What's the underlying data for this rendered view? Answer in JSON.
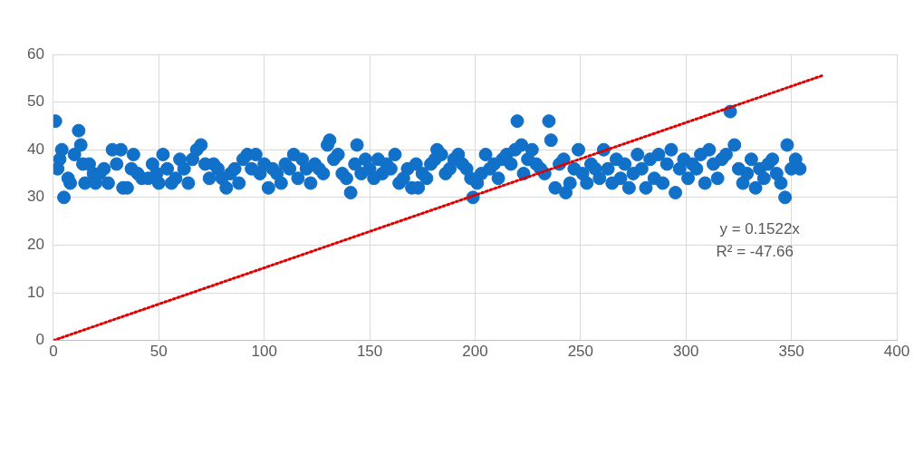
{
  "chart_data": {
    "type": "scatter",
    "xlim": [
      0,
      400
    ],
    "ylim": [
      0,
      60
    ],
    "xticks": [
      0,
      50,
      100,
      150,
      200,
      250,
      300,
      350,
      400
    ],
    "yticks": [
      0,
      10,
      20,
      30,
      40,
      50,
      60
    ],
    "grid": true,
    "legend": false,
    "marker": "circle",
    "annotations": [
      "y = 0.1522x",
      "R² = -47.66"
    ],
    "series": [
      {
        "color": "#1170c8",
        "x": [
          1,
          2,
          3,
          4,
          5,
          7,
          8,
          10,
          12,
          13,
          14,
          15,
          17,
          19,
          20,
          22,
          24,
          26,
          28,
          30,
          32,
          33,
          35,
          37,
          38,
          40,
          42,
          45,
          47,
          49,
          50,
          52,
          54,
          56,
          58,
          60,
          62,
          64,
          66,
          68,
          70,
          72,
          74,
          76,
          78,
          80,
          82,
          84,
          86,
          88,
          90,
          92,
          94,
          96,
          98,
          100,
          102,
          104,
          106,
          108,
          110,
          112,
          114,
          116,
          118,
          120,
          122,
          124,
          126,
          128,
          130,
          131,
          133,
          135,
          137,
          139,
          141,
          143,
          144,
          146,
          148,
          150,
          152,
          154,
          156,
          158,
          160,
          162,
          164,
          166,
          168,
          170,
          172,
          173,
          175,
          177,
          179,
          181,
          182,
          184,
          186,
          188,
          190,
          192,
          194,
          196,
          198,
          199,
          201,
          203,
          205,
          207,
          209,
          211,
          213,
          215,
          217,
          219,
          220,
          222,
          223,
          225,
          227,
          229,
          231,
          233,
          235,
          236,
          238,
          240,
          242,
          243,
          245,
          247,
          249,
          251,
          253,
          255,
          257,
          259,
          261,
          263,
          265,
          267,
          269,
          271,
          273,
          275,
          277,
          279,
          281,
          283,
          285,
          287,
          289,
          291,
          293,
          295,
          297,
          299,
          301,
          303,
          305,
          307,
          309,
          311,
          313,
          315,
          317,
          319,
          321,
          323,
          325,
          327,
          329,
          331,
          333,
          335,
          337,
          339,
          341,
          343,
          345,
          347,
          348,
          350,
          352,
          354
        ],
        "values": [
          46,
          36,
          38,
          40,
          30,
          34,
          33,
          39,
          44,
          41,
          37,
          33,
          37,
          35,
          33,
          35,
          36,
          33,
          40,
          37,
          40,
          32,
          32,
          36,
          39,
          35,
          34,
          34,
          37,
          35,
          33,
          39,
          36,
          33,
          34,
          38,
          36,
          33,
          38,
          40,
          41,
          37,
          34,
          37,
          36,
          34,
          32,
          35,
          36,
          33,
          38,
          39,
          36,
          39,
          35,
          37,
          32,
          36,
          35,
          33,
          37,
          36,
          39,
          34,
          38,
          36,
          33,
          37,
          36,
          35,
          41,
          42,
          38,
          39,
          35,
          34,
          31,
          37,
          41,
          35,
          38,
          36,
          34,
          38,
          35,
          37,
          36,
          39,
          33,
          34,
          36,
          32,
          37,
          32,
          35,
          34,
          37,
          38,
          40,
          39,
          35,
          36,
          38,
          39,
          37,
          36,
          34,
          30,
          33,
          35,
          39,
          36,
          37,
          34,
          38,
          39,
          37,
          40,
          46,
          41,
          35,
          38,
          40,
          37,
          36,
          35,
          46,
          42,
          32,
          37,
          38,
          31,
          33,
          36,
          40,
          35,
          33,
          37,
          36,
          34,
          40,
          36,
          33,
          38,
          34,
          37,
          32,
          35,
          39,
          36,
          32,
          38,
          34,
          39,
          33,
          37,
          40,
          31,
          36,
          38,
          34,
          37,
          36,
          39,
          33,
          40,
          37,
          34,
          38,
          39,
          48,
          41,
          36,
          33,
          35,
          38,
          32,
          36,
          34,
          37,
          38,
          35,
          33,
          30,
          41,
          36,
          38,
          36
        ]
      },
      {
        "type": "line",
        "color": "#e00000",
        "line_style": "dotted",
        "marker": "none",
        "x": [
          0,
          365
        ],
        "values": [
          0,
          55.6
        ]
      }
    ]
  }
}
